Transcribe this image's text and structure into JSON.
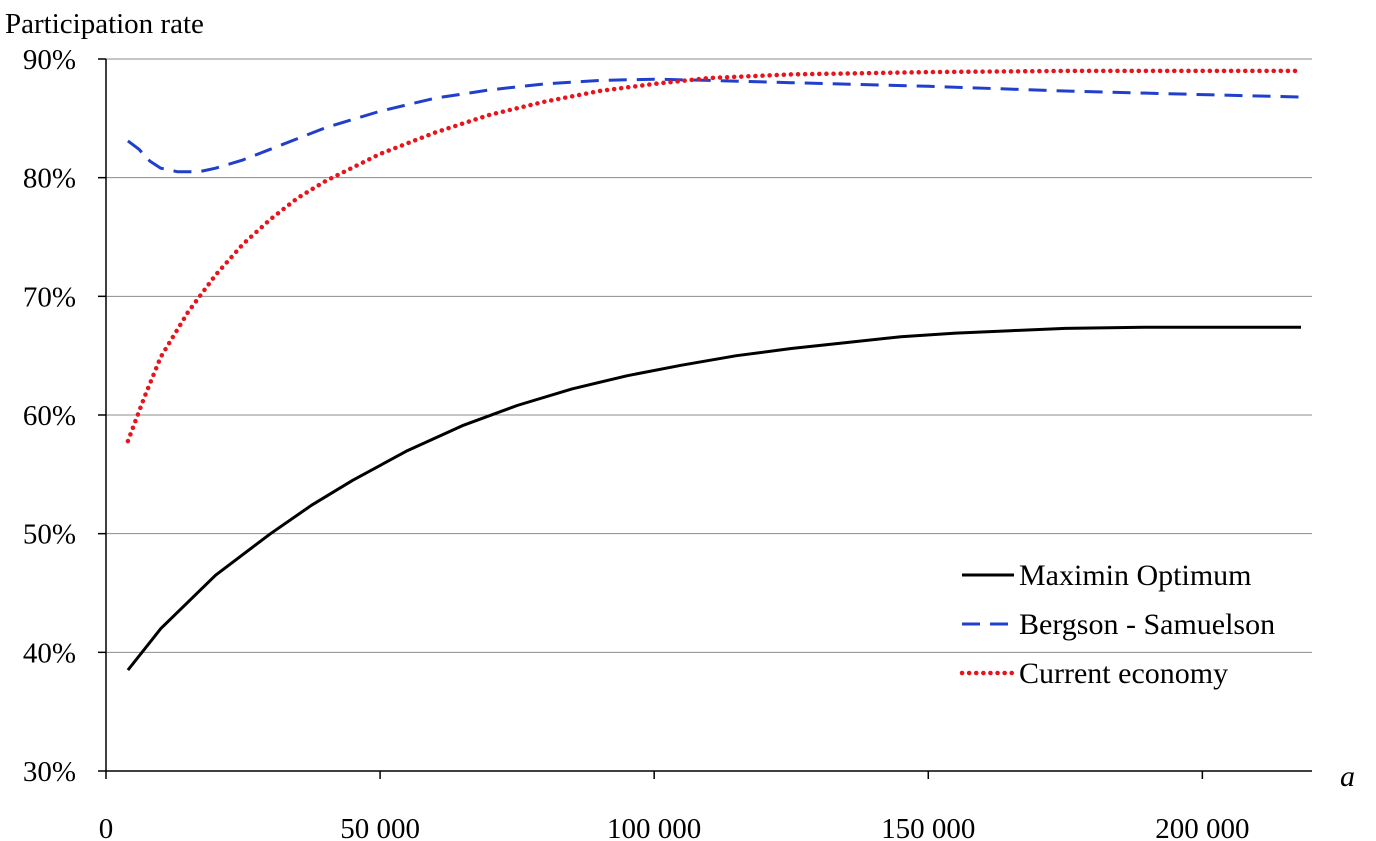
{
  "chart_data": {
    "type": "line",
    "title": "",
    "ylabel": "Participation rate",
    "xlabel": "a",
    "xlim": [
      0,
      220000
    ],
    "ylim": [
      0.3,
      0.9
    ],
    "x_ticks": [
      {
        "value": 0,
        "label": "0"
      },
      {
        "value": 50000,
        "label": "50 000"
      },
      {
        "value": 100000,
        "label": "100 000"
      },
      {
        "value": 150000,
        "label": "150 000"
      },
      {
        "value": 200000,
        "label": "200 000"
      }
    ],
    "y_ticks": [
      {
        "value": 0.3,
        "label": "30%"
      },
      {
        "value": 0.4,
        "label": "40%"
      },
      {
        "value": 0.5,
        "label": "50%"
      },
      {
        "value": 0.6,
        "label": "60%"
      },
      {
        "value": 0.7,
        "label": "70%"
      },
      {
        "value": 0.8,
        "label": "80%"
      },
      {
        "value": 0.9,
        "label": "90%"
      }
    ],
    "grid": "horizontal",
    "legend_position": "bottom-right",
    "series": [
      {
        "name": "Maximin Optimum",
        "color": "#000000",
        "style": "solid",
        "x": [
          4000,
          10000,
          20000,
          30000,
          37500,
          45000,
          55000,
          65000,
          75000,
          85000,
          95000,
          105000,
          115000,
          125000,
          135000,
          145000,
          155000,
          165000,
          175000,
          190000,
          205000,
          218000
        ],
        "y": [
          0.385,
          0.42,
          0.465,
          0.5,
          0.524,
          0.545,
          0.57,
          0.591,
          0.608,
          0.622,
          0.633,
          0.642,
          0.65,
          0.656,
          0.661,
          0.666,
          0.669,
          0.671,
          0.673,
          0.674,
          0.674,
          0.674
        ]
      },
      {
        "name": "Bergson - Samuelson",
        "color": "#1f3fcc",
        "style": "dashed",
        "x": [
          4000,
          6000,
          8000,
          10000,
          13000,
          17000,
          20000,
          25000,
          30000,
          35000,
          40000,
          50000,
          60000,
          70000,
          80000,
          90000,
          100000,
          110000,
          125000,
          150000,
          175000,
          200000,
          218000
        ],
        "y": [
          0.831,
          0.824,
          0.814,
          0.808,
          0.805,
          0.805,
          0.808,
          0.815,
          0.824,
          0.833,
          0.842,
          0.856,
          0.867,
          0.874,
          0.879,
          0.882,
          0.883,
          0.882,
          0.88,
          0.877,
          0.873,
          0.87,
          0.868
        ]
      },
      {
        "name": "Current economy",
        "color": "#e8141c",
        "style": "dotted",
        "x": [
          4000,
          7000,
          10000,
          15000,
          20000,
          25000,
          30000,
          35000,
          40000,
          50000,
          60000,
          70000,
          80000,
          90000,
          100000,
          110000,
          125000,
          150000,
          175000,
          200000,
          218000
        ],
        "y": [
          0.578,
          0.615,
          0.649,
          0.687,
          0.718,
          0.744,
          0.765,
          0.783,
          0.797,
          0.82,
          0.838,
          0.853,
          0.864,
          0.873,
          0.879,
          0.884,
          0.887,
          0.889,
          0.89,
          0.89,
          0.89
        ]
      }
    ]
  }
}
